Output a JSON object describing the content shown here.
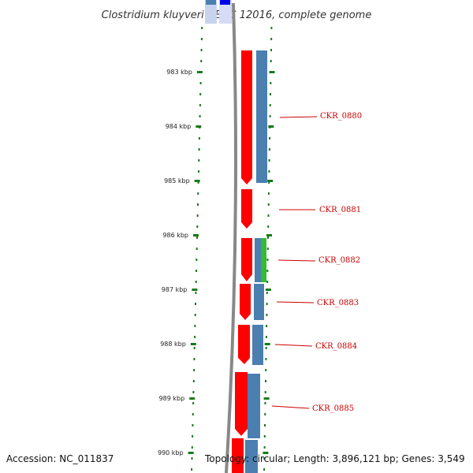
{
  "title": "Clostridium kluyveri NBRC 12016, complete genome",
  "accession_text": "Accession: NC_011837",
  "topology_text": "Topology: circular; Length: 3,896,121 bp; Genes: 3,549",
  "colors": {
    "cds": "#ff0000",
    "gene": "#4a7fb0",
    "label_line": "#cc0000",
    "label_text": "#cc0000",
    "tick": "#1a7a1a",
    "backbone": "#888888",
    "rna": "#33bb33",
    "top_blue": "#0000ee"
  },
  "scale": {
    "unit": "kbp",
    "ticks": [
      "983 kbp",
      "984 kbp",
      "985 kbp",
      "986 kbp",
      "987 kbp",
      "988 kbp",
      "989 kbp",
      "990 kbp"
    ]
  },
  "genes": [
    {
      "locus": "CKR_0880"
    },
    {
      "locus": "CKR_0881"
    },
    {
      "locus": "CKR_0882"
    },
    {
      "locus": "CKR_0883"
    },
    {
      "locus": "CKR_0884"
    },
    {
      "locus": "CKR_0885"
    }
  ]
}
